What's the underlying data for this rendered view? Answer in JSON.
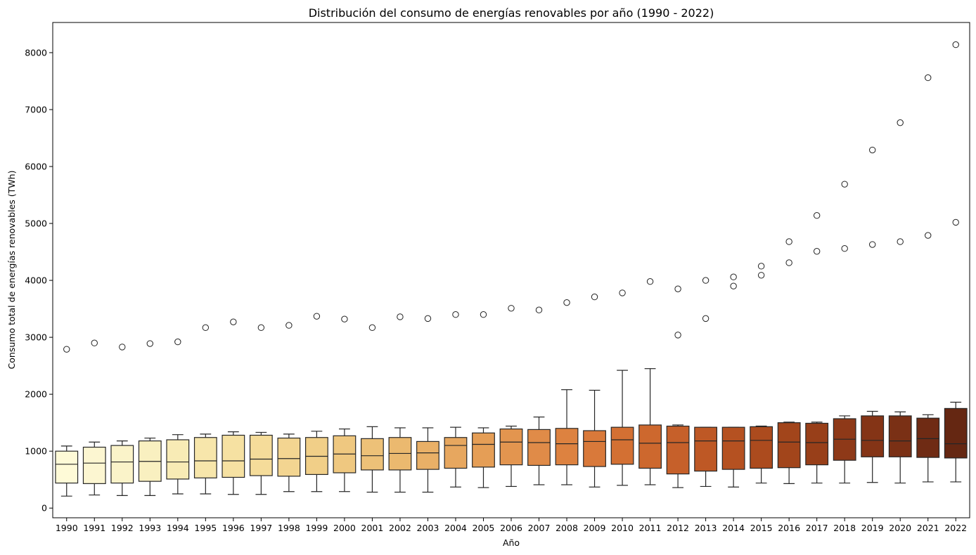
{
  "chart_data": {
    "type": "box",
    "title": "Distribución del consumo de energías renovables por año (1990 - 2022)",
    "xlabel": "Año",
    "ylabel": "Consumo total de energías renovables (TWh)",
    "ylim": [
      -170,
      8530
    ],
    "yticks": [
      0,
      1000,
      2000,
      3000,
      4000,
      5000,
      6000,
      7000,
      8000
    ],
    "grid": false,
    "palette": "YlOrBr",
    "categories": [
      "1990",
      "1991",
      "1992",
      "1993",
      "1994",
      "1995",
      "1996",
      "1997",
      "1998",
      "1999",
      "2000",
      "2001",
      "2002",
      "2003",
      "2004",
      "2005",
      "2006",
      "2007",
      "2008",
      "2009",
      "2010",
      "2011",
      "2012",
      "2013",
      "2014",
      "2015",
      "2016",
      "2017",
      "2018",
      "2019",
      "2020",
      "2021",
      "2022"
    ],
    "boxes": [
      {
        "year": "1990",
        "whislo": 210,
        "q1": 440,
        "med": 770,
        "q3": 1000,
        "whishi": 1090,
        "fliers": [
          2790
        ]
      },
      {
        "year": "1991",
        "whislo": 230,
        "q1": 430,
        "med": 790,
        "q3": 1070,
        "whishi": 1160,
        "fliers": [
          2900
        ]
      },
      {
        "year": "1992",
        "whislo": 220,
        "q1": 440,
        "med": 810,
        "q3": 1100,
        "whishi": 1180,
        "fliers": [
          2830
        ]
      },
      {
        "year": "1993",
        "whislo": 220,
        "q1": 470,
        "med": 820,
        "q3": 1180,
        "whishi": 1230,
        "fliers": [
          2890
        ]
      },
      {
        "year": "1994",
        "whislo": 250,
        "q1": 510,
        "med": 810,
        "q3": 1200,
        "whishi": 1290,
        "fliers": [
          2920
        ]
      },
      {
        "year": "1995",
        "whislo": 250,
        "q1": 530,
        "med": 830,
        "q3": 1240,
        "whishi": 1300,
        "fliers": [
          3170
        ]
      },
      {
        "year": "1996",
        "whislo": 240,
        "q1": 540,
        "med": 830,
        "q3": 1280,
        "whishi": 1340,
        "fliers": [
          3270
        ]
      },
      {
        "year": "1997",
        "whislo": 240,
        "q1": 570,
        "med": 860,
        "q3": 1280,
        "whishi": 1330,
        "fliers": [
          3170
        ]
      },
      {
        "year": "1998",
        "whislo": 290,
        "q1": 560,
        "med": 870,
        "q3": 1230,
        "whishi": 1300,
        "fliers": [
          3210
        ]
      },
      {
        "year": "1999",
        "whislo": 290,
        "q1": 590,
        "med": 910,
        "q3": 1240,
        "whishi": 1350,
        "fliers": [
          3370
        ]
      },
      {
        "year": "2000",
        "whislo": 290,
        "q1": 620,
        "med": 950,
        "q3": 1270,
        "whishi": 1390,
        "fliers": [
          3320
        ]
      },
      {
        "year": "2001",
        "whislo": 280,
        "q1": 670,
        "med": 920,
        "q3": 1220,
        "whishi": 1430,
        "fliers": [
          3170
        ]
      },
      {
        "year": "2002",
        "whislo": 280,
        "q1": 670,
        "med": 960,
        "q3": 1240,
        "whishi": 1410,
        "fliers": [
          3360
        ]
      },
      {
        "year": "2003",
        "whislo": 280,
        "q1": 680,
        "med": 970,
        "q3": 1170,
        "whishi": 1410,
        "fliers": [
          3330
        ]
      },
      {
        "year": "2004",
        "whislo": 370,
        "q1": 700,
        "med": 1100,
        "q3": 1240,
        "whishi": 1420,
        "fliers": [
          3400
        ]
      },
      {
        "year": "2005",
        "whislo": 360,
        "q1": 720,
        "med": 1120,
        "q3": 1320,
        "whishi": 1410,
        "fliers": [
          3400
        ]
      },
      {
        "year": "2006",
        "whislo": 380,
        "q1": 760,
        "med": 1160,
        "q3": 1390,
        "whishi": 1440,
        "fliers": [
          3510
        ]
      },
      {
        "year": "2007",
        "whislo": 410,
        "q1": 750,
        "med": 1150,
        "q3": 1380,
        "whishi": 1600,
        "fliers": [
          3480
        ]
      },
      {
        "year": "2008",
        "whislo": 410,
        "q1": 760,
        "med": 1130,
        "q3": 1400,
        "whishi": 2080,
        "fliers": [
          3610
        ]
      },
      {
        "year": "2009",
        "whislo": 370,
        "q1": 730,
        "med": 1170,
        "q3": 1360,
        "whishi": 2070,
        "fliers": [
          3710
        ]
      },
      {
        "year": "2010",
        "whislo": 400,
        "q1": 770,
        "med": 1200,
        "q3": 1420,
        "whishi": 2420,
        "fliers": [
          3780
        ]
      },
      {
        "year": "2011",
        "whislo": 410,
        "q1": 700,
        "med": 1140,
        "q3": 1460,
        "whishi": 2450,
        "fliers": [
          3980
        ]
      },
      {
        "year": "2012",
        "whislo": 360,
        "q1": 600,
        "med": 1150,
        "q3": 1440,
        "whishi": 1460,
        "fliers": [
          3850,
          3040
        ]
      },
      {
        "year": "2013",
        "whislo": 380,
        "q1": 650,
        "med": 1180,
        "q3": 1420,
        "whishi": 1420,
        "fliers": [
          4000,
          3330
        ]
      },
      {
        "year": "2014",
        "whislo": 370,
        "q1": 680,
        "med": 1180,
        "q3": 1420,
        "whishi": 1420,
        "fliers": [
          4060,
          3900
        ]
      },
      {
        "year": "2015",
        "whislo": 440,
        "q1": 700,
        "med": 1190,
        "q3": 1430,
        "whishi": 1440,
        "fliers": [
          4250,
          4090
        ]
      },
      {
        "year": "2016",
        "whislo": 430,
        "q1": 710,
        "med": 1160,
        "q3": 1500,
        "whishi": 1510,
        "fliers": [
          4680,
          4310
        ]
      },
      {
        "year": "2017",
        "whislo": 440,
        "q1": 760,
        "med": 1150,
        "q3": 1490,
        "whishi": 1510,
        "fliers": [
          5140,
          4510
        ]
      },
      {
        "year": "2018",
        "whislo": 440,
        "q1": 840,
        "med": 1210,
        "q3": 1570,
        "whishi": 1620,
        "fliers": [
          5690,
          4560
        ]
      },
      {
        "year": "2019",
        "whislo": 450,
        "q1": 900,
        "med": 1190,
        "q3": 1620,
        "whishi": 1700,
        "fliers": [
          6290,
          4630
        ]
      },
      {
        "year": "2020",
        "whislo": 440,
        "q1": 900,
        "med": 1180,
        "q3": 1620,
        "whishi": 1690,
        "fliers": [
          6770,
          4680
        ]
      },
      {
        "year": "2021",
        "whislo": 460,
        "q1": 890,
        "med": 1220,
        "q3": 1580,
        "whishi": 1640,
        "fliers": [
          7560,
          4790
        ]
      },
      {
        "year": "2022",
        "whislo": 460,
        "q1": 880,
        "med": 1130,
        "q3": 1750,
        "whishi": 1860,
        "fliers": [
          8140,
          5020
        ]
      }
    ],
    "colors": [
      "#fefad7",
      "#fcf6d1",
      "#faf3c9",
      "#f9f0c0",
      "#f8ebb5",
      "#f7e6ab",
      "#f6e1a2",
      "#f5dc9a",
      "#f3d591",
      "#f1cf88",
      "#efc880",
      "#edc178",
      "#ebb96f",
      "#e9b067",
      "#e7a75f",
      "#e59e56",
      "#e3954f",
      "#e08b48",
      "#dd8240",
      "#d9793a",
      "#d37033",
      "#cd682e",
      "#c6602a",
      "#be5825",
      "#b55121",
      "#ac4b1e",
      "#a2451b",
      "#983f19",
      "#8e3918",
      "#843416",
      "#7a3015",
      "#6f2b14",
      "#652712"
    ]
  }
}
